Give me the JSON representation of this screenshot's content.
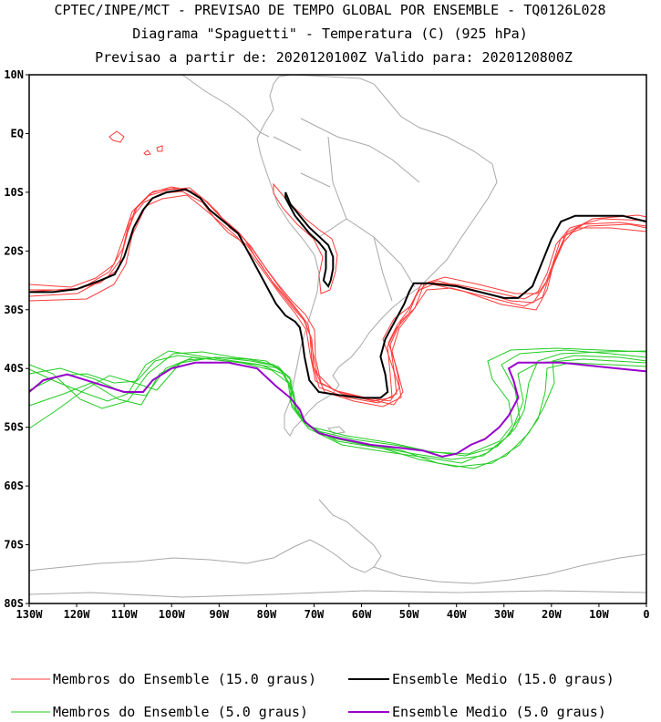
{
  "chart_data": {
    "type": "line",
    "title": "CPTEC/INPE/MCT - PREVISAO DE TEMPO GLOBAL POR ENSEMBLE - TQ0126L028",
    "subtitle": "Diagrama \"Spaguetti\" - Temperatura (C) (925 hPa)",
    "forecast_line": "Previsao a partir de: 2020120100Z  Valido para: 2020120800Z",
    "x_axis": {
      "range": [
        -130,
        0
      ],
      "ticks": [
        "130W",
        "120W",
        "110W",
        "100W",
        "90W",
        "80W",
        "70W",
        "60W",
        "50W",
        "40W",
        "30W",
        "20W",
        "10W",
        "0"
      ]
    },
    "y_axis": {
      "range": [
        -80,
        10
      ],
      "ticks": [
        "10N",
        "EQ",
        "10S",
        "20S",
        "30S",
        "40S",
        "50S",
        "60S",
        "70S",
        "80S"
      ]
    },
    "series": [
      {
        "name": "Ensemble Medio (15.0 graus)",
        "color": "#000000",
        "points": [
          [
            -130,
            -27
          ],
          [
            -125,
            -27
          ],
          [
            -120,
            -26.5
          ],
          [
            -115,
            -25
          ],
          [
            -112,
            -24
          ],
          [
            -110,
            -21
          ],
          [
            -108,
            -16
          ],
          [
            -106,
            -13
          ],
          [
            -104,
            -11
          ],
          [
            -101,
            -10
          ],
          [
            -97,
            -9.5
          ],
          [
            -94,
            -11
          ],
          [
            -92,
            -13
          ],
          [
            -89,
            -15
          ],
          [
            -86,
            -17
          ],
          [
            -84,
            -20
          ],
          [
            -82,
            -23
          ],
          [
            -80,
            -26
          ],
          [
            -78,
            -29
          ],
          [
            -76,
            -31
          ],
          [
            -74,
            -32
          ],
          [
            -73,
            -33
          ],
          [
            -72.5,
            -35
          ],
          [
            -72,
            -38
          ],
          [
            -71,
            -42
          ],
          [
            -69,
            -44
          ],
          [
            -65,
            -44.5
          ],
          [
            -60,
            -45
          ],
          [
            -56,
            -45
          ],
          [
            -54.5,
            -44
          ],
          [
            -55,
            -41
          ],
          [
            -56,
            -38
          ],
          [
            -55,
            -35
          ],
          [
            -53,
            -32
          ],
          [
            -51,
            -29
          ],
          [
            -50,
            -27
          ],
          [
            -49,
            -25.5
          ],
          [
            -46,
            -25.5
          ],
          [
            -40,
            -26
          ],
          [
            -35,
            -27
          ],
          [
            -30,
            -28
          ],
          [
            -27,
            -28
          ],
          [
            -24,
            -26
          ],
          [
            -22,
            -22
          ],
          [
            -20,
            -18
          ],
          [
            -18,
            -15
          ],
          [
            -15,
            -14
          ],
          [
            -10,
            -14
          ],
          [
            -5,
            -14
          ],
          [
            0,
            -15
          ]
        ]
      },
      {
        "name": "Ensemble Medio (15.0 graus) - Andes",
        "color": "#000000",
        "points": [
          [
            -76,
            -10
          ],
          [
            -75,
            -12
          ],
          [
            -73,
            -14
          ],
          [
            -71,
            -16
          ],
          [
            -69,
            -17.5
          ],
          [
            -67,
            -19
          ],
          [
            -66,
            -21
          ],
          [
            -66,
            -23
          ],
          [
            -66.5,
            -25
          ],
          [
            -67,
            -26
          ],
          [
            -68,
            -25
          ],
          [
            -67.5,
            -23
          ],
          [
            -67.5,
            -20
          ],
          [
            -69,
            -18.5
          ],
          [
            -71,
            -17
          ],
          [
            -74,
            -14
          ],
          [
            -76,
            -11
          ],
          [
            -76,
            -10
          ]
        ]
      },
      {
        "name": "Ensemble Medio (5.0 graus)",
        "color": "#9900cc",
        "points": [
          [
            -130,
            -44
          ],
          [
            -127,
            -42
          ],
          [
            -122,
            -41
          ],
          [
            -118,
            -42
          ],
          [
            -114,
            -43
          ],
          [
            -110,
            -44
          ],
          [
            -106,
            -44
          ],
          [
            -104,
            -42
          ],
          [
            -100,
            -40
          ],
          [
            -95,
            -39
          ],
          [
            -88,
            -39
          ],
          [
            -82,
            -40
          ],
          [
            -78,
            -43
          ],
          [
            -75,
            -45
          ],
          [
            -73,
            -47
          ],
          [
            -72,
            -49
          ],
          [
            -69,
            -51
          ],
          [
            -64,
            -52
          ],
          [
            -58,
            -53
          ],
          [
            -52,
            -53.5
          ],
          [
            -47,
            -54
          ],
          [
            -43,
            -55
          ],
          [
            -40,
            -54.5
          ],
          [
            -37,
            -53
          ],
          [
            -34,
            -52
          ],
          [
            -31,
            -50
          ],
          [
            -29,
            -48
          ],
          [
            -27,
            -45
          ],
          [
            -28,
            -42
          ],
          [
            -29,
            -40
          ],
          [
            -27,
            -39
          ],
          [
            -22,
            -39
          ],
          [
            -18,
            -39
          ],
          [
            -12,
            -39.5
          ],
          [
            -6,
            -40
          ],
          [
            0,
            -40.5
          ]
        ]
      }
    ]
  },
  "legend": {
    "red_members": "Membros do Ensemble (15.0 graus)",
    "black_mean": "Ensemble Medio (15.0 graus)",
    "green_members": "Membros do Ensemble (5.0 graus)",
    "purple_mean": "Ensemble Medio (5.0 graus)"
  },
  "colors": {
    "red_members": "#ff3b3b",
    "black_mean": "#000000",
    "green_members": "#22cc22",
    "purple_mean": "#9900cc",
    "coast": "#a8a8a8"
  }
}
